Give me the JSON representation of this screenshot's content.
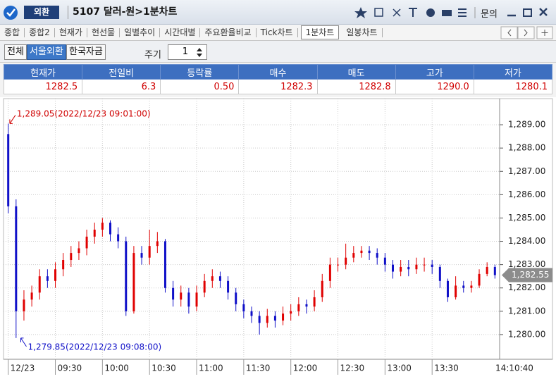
{
  "header": {
    "section": "외환",
    "title": "5107 달러-원>1분차트",
    "menu": "문의"
  },
  "tabs": [
    "종합",
    "종합2",
    "현재가",
    "현선물",
    "일별추이",
    "시간대별",
    "주요환율비교",
    "Tick차트",
    "1분차트",
    "일봉차트"
  ],
  "active_tab": "1분차트",
  "market_buttons": [
    "전체",
    "서울외환",
    "한국자금"
  ],
  "active_market": "서울외환",
  "period": {
    "label": "주기",
    "value": "1"
  },
  "quote": {
    "headers": [
      "현재가",
      "전일비",
      "등락률",
      "매수",
      "매도",
      "고가",
      "저가"
    ],
    "values": [
      "1282.5",
      "6.3",
      "0.50",
      "1282.3",
      "1282.8",
      "1290.0",
      "1280.1"
    ]
  },
  "chart_data": {
    "type": "candlestick",
    "x": [
      "09:00",
      "09:05",
      "09:10",
      "09:15",
      "09:20",
      "09:25",
      "09:30",
      "09:35",
      "09:40",
      "09:45",
      "09:50",
      "09:55",
      "10:00",
      "10:05",
      "10:10",
      "10:15",
      "10:20",
      "10:25",
      "10:30",
      "10:35",
      "10:40",
      "10:45",
      "10:50",
      "10:55",
      "11:00",
      "11:05",
      "11:10",
      "11:15",
      "11:20",
      "11:25",
      "11:30",
      "11:35",
      "11:40",
      "11:45",
      "11:50",
      "11:55",
      "12:00",
      "12:05",
      "12:10",
      "12:15",
      "12:20",
      "12:25",
      "12:30",
      "12:35",
      "12:40",
      "12:45",
      "12:50",
      "12:55",
      "13:00",
      "13:05",
      "13:10",
      "13:15",
      "13:20",
      "13:25",
      "13:30",
      "13:35",
      "13:40",
      "13:45",
      "13:50",
      "13:55",
      "14:00",
      "14:05",
      "14:10"
    ],
    "open": [
      1288.6,
      1285.5,
      1281.0,
      1281.5,
      1281.8,
      1282.5,
      1282.3,
      1282.8,
      1283.2,
      1283.5,
      1283.7,
      1284.2,
      1284.5,
      1284.8,
      1284.3,
      1284.0,
      1281.0,
      1283.5,
      1283.3,
      1283.8,
      1284.0,
      1282.0,
      1281.5,
      1281.8,
      1281.2,
      1281.8,
      1282.3,
      1282.5,
      1282.3,
      1281.8,
      1281.3,
      1281.0,
      1280.8,
      1280.5,
      1280.8,
      1280.6,
      1280.9,
      1281.0,
      1281.3,
      1281.2,
      1281.6,
      1282.3,
      1283.0,
      1283.0,
      1283.3,
      1283.5,
      1283.6,
      1283.5,
      1283.3,
      1283.0,
      1282.7,
      1282.9,
      1282.8,
      1283.0,
      1283.0,
      1282.9,
      1282.3,
      1281.6,
      1282.1,
      1282.0,
      1282.1,
      1282.6,
      1282.9
    ],
    "high": [
      1289.05,
      1285.8,
      1281.9,
      1282.1,
      1282.8,
      1282.8,
      1283.1,
      1283.5,
      1283.8,
      1284.0,
      1284.5,
      1284.8,
      1285.0,
      1284.9,
      1284.6,
      1284.2,
      1283.8,
      1283.8,
      1284.5,
      1284.4,
      1284.1,
      1282.3,
      1282.1,
      1282.0,
      1282.1,
      1282.6,
      1282.8,
      1282.7,
      1282.5,
      1282.0,
      1281.5,
      1281.2,
      1281.0,
      1281.1,
      1281.0,
      1281.2,
      1281.3,
      1281.6,
      1281.5,
      1281.9,
      1282.6,
      1283.3,
      1283.3,
      1283.9,
      1283.8,
      1283.8,
      1283.8,
      1283.7,
      1283.5,
      1283.2,
      1283.2,
      1283.2,
      1283.3,
      1283.3,
      1283.2,
      1283.0,
      1282.4,
      1282.5,
      1282.3,
      1282.3,
      1282.8,
      1283.1,
      1283.0
    ],
    "low": [
      1285.2,
      1279.85,
      1280.6,
      1281.2,
      1281.5,
      1282.0,
      1282.0,
      1282.5,
      1282.9,
      1283.2,
      1283.4,
      1283.9,
      1284.2,
      1284.0,
      1283.7,
      1280.8,
      1280.9,
      1283.0,
      1283.0,
      1283.5,
      1281.8,
      1281.2,
      1281.2,
      1280.9,
      1281.0,
      1281.6,
      1282.0,
      1282.0,
      1281.5,
      1281.0,
      1280.7,
      1280.5,
      1280.0,
      1280.3,
      1280.3,
      1280.4,
      1280.6,
      1280.8,
      1280.9,
      1281.0,
      1281.4,
      1282.0,
      1282.7,
      1282.8,
      1283.1,
      1283.3,
      1283.2,
      1283.0,
      1282.7,
      1282.4,
      1282.5,
      1282.5,
      1282.6,
      1282.7,
      1282.6,
      1282.0,
      1281.4,
      1281.5,
      1281.8,
      1281.8,
      1282.0,
      1282.5,
      1282.4
    ],
    "close": [
      1285.5,
      1281.0,
      1281.5,
      1281.8,
      1282.5,
      1282.3,
      1282.8,
      1283.2,
      1283.5,
      1283.7,
      1284.2,
      1284.5,
      1284.8,
      1284.3,
      1284.0,
      1281.0,
      1283.5,
      1283.3,
      1283.8,
      1284.0,
      1282.0,
      1281.5,
      1281.8,
      1281.2,
      1281.8,
      1282.3,
      1282.5,
      1282.3,
      1281.8,
      1281.3,
      1281.0,
      1280.8,
      1280.5,
      1280.8,
      1280.6,
      1280.9,
      1281.0,
      1281.3,
      1281.2,
      1281.6,
      1282.3,
      1283.0,
      1283.0,
      1283.3,
      1283.5,
      1283.6,
      1283.5,
      1283.3,
      1283.0,
      1282.7,
      1282.9,
      1282.8,
      1283.0,
      1283.0,
      1282.9,
      1282.3,
      1281.6,
      1282.1,
      1282.0,
      1282.1,
      1282.6,
      1282.9,
      1282.55
    ],
    "up_color": "#e00000",
    "down_color": "#1010c8",
    "xlim": [
      "08:57",
      "14:13"
    ],
    "xticks": [
      {
        "value": "09:00",
        "label": "12/23"
      },
      "09:30",
      "10:00",
      "10:30",
      "11:00",
      "11:30",
      "12:00",
      "12:30",
      "13:00",
      "13:30"
    ],
    "ylim": [
      1278.94,
      1290.12
    ],
    "yticks": [
      {
        "value": 1280,
        "label": "1,280.00"
      },
      {
        "value": 1281,
        "label": "1,281.00"
      },
      {
        "value": 1282,
        "label": "1,282.00"
      },
      {
        "value": 1283,
        "label": "1,283.00"
      },
      {
        "value": 1284,
        "label": "1,284.00"
      },
      {
        "value": 1285,
        "label": "1,285.00"
      },
      {
        "value": 1286,
        "label": "1,286.00"
      },
      {
        "value": 1287,
        "label": "1,287.00"
      },
      {
        "value": 1288,
        "label": "1,288.00"
      },
      {
        "value": 1289,
        "label": "1,289.00"
      }
    ],
    "grid": true,
    "annotations": [
      {
        "x": "09:01",
        "value": 1289.05,
        "label": "1,289.05(2022/12/23 09:01:00)",
        "color": "#d00000"
      },
      {
        "x": "09:08",
        "value": 1279.85,
        "label": "1,279.85(2022/12/23 09:08:00)",
        "color": "#1010c8"
      }
    ],
    "last_price": {
      "value": 1282.55,
      "label": "1,282.55"
    },
    "current_time": "14:10:40"
  }
}
